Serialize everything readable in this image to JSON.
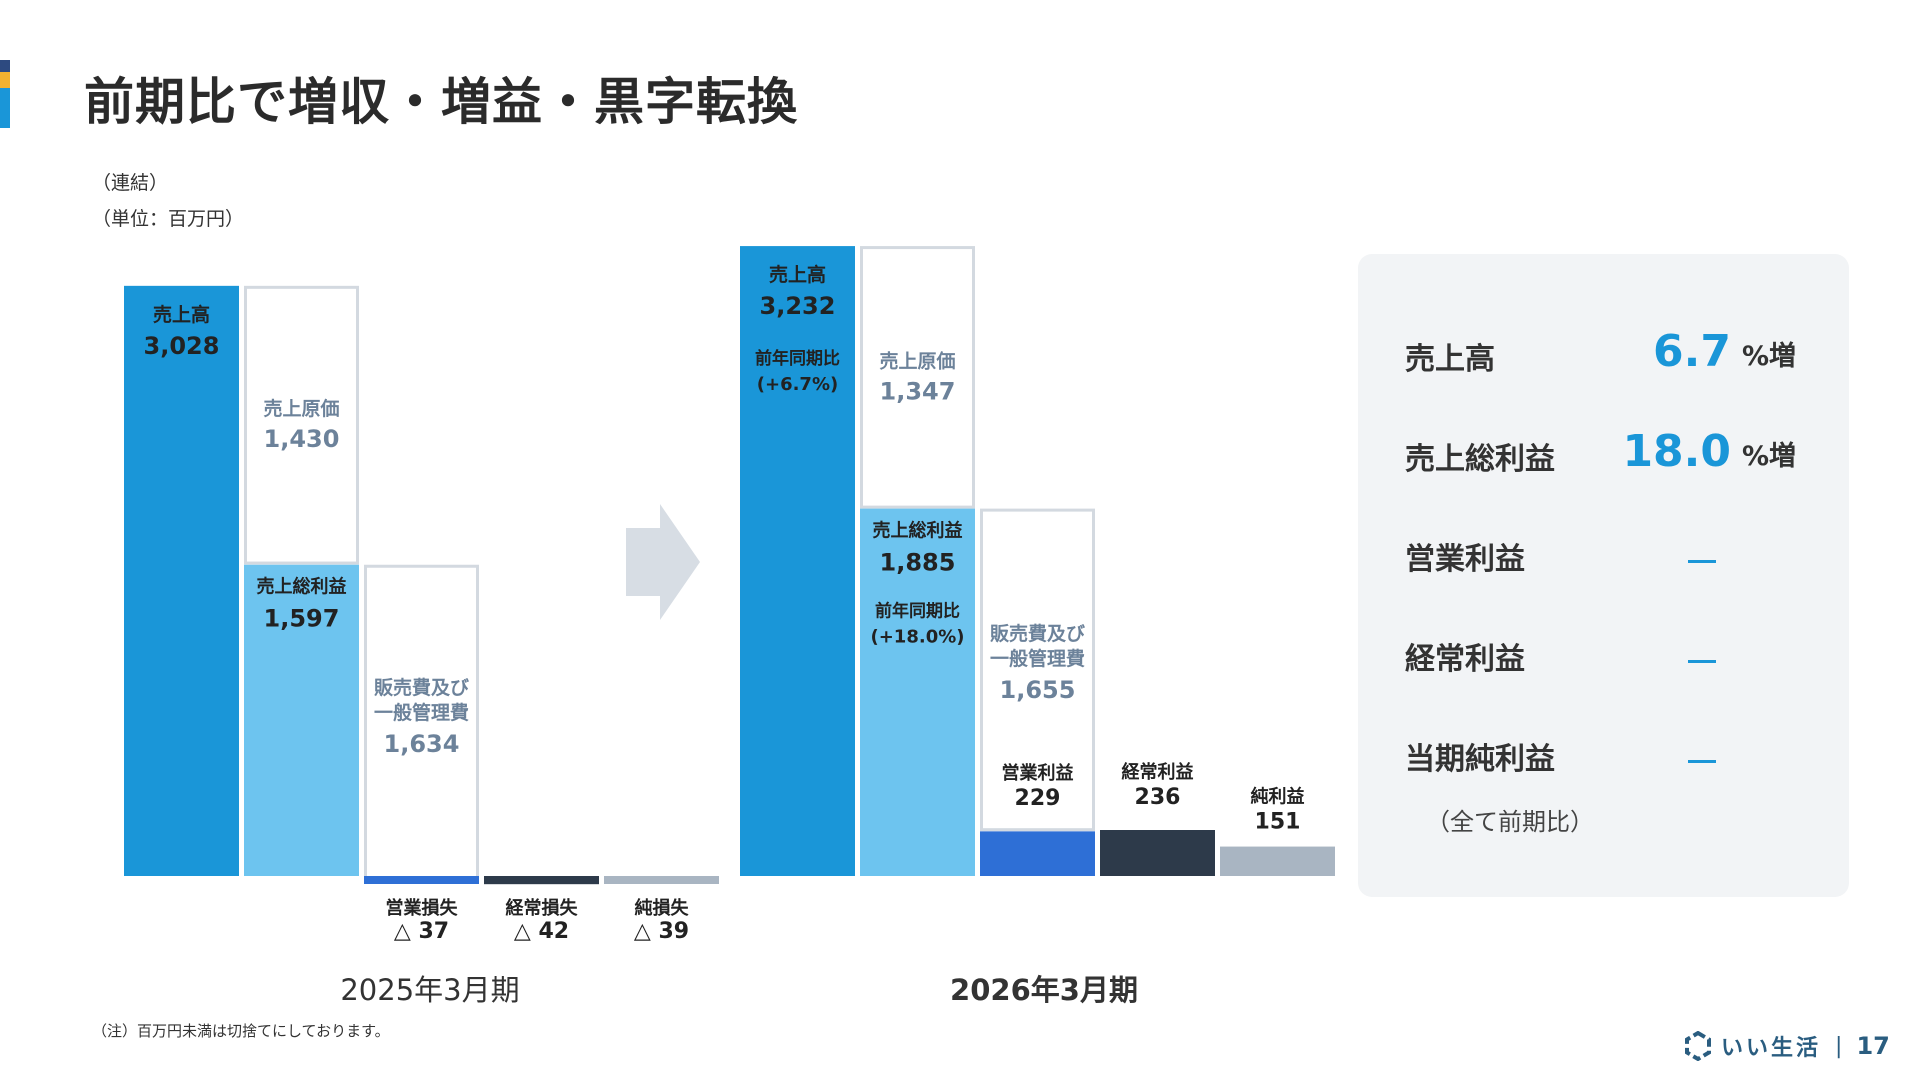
{
  "page": {
    "title": "前期比で増収・増益・黒字転換",
    "scope": "（連結）",
    "unit": "（単位：百万円）",
    "footnote": "（注）百万円未満は切捨てにしております。",
    "brand": "いい生活",
    "page_number": "17",
    "colors": {
      "sales": "#1a96d8",
      "gross_profit": "#6dc4ef",
      "operating": "#2e6fd6",
      "ordinary": "#2d3a4a",
      "net": "#a9b5c2",
      "cost_border": "#d3d9e0",
      "arrow": "#d7dde4"
    }
  },
  "chart_data": [
    {
      "type": "bar",
      "subtype": "waterfall",
      "period": "2025年3月期",
      "items": [
        {
          "name": "売上高",
          "value": 3028,
          "label": "3,028"
        },
        {
          "name": "売上原価",
          "value": 1430,
          "label": "1,430"
        },
        {
          "name": "売上総利益",
          "value": 1597,
          "label": "1,597"
        },
        {
          "name": "販売費及び一般管理費",
          "name_lines": [
            "販売費及び",
            "一般管理費"
          ],
          "value": 1634,
          "label": "1,634"
        },
        {
          "name": "営業損失",
          "value": -37,
          "label": "△ 37"
        },
        {
          "name": "経常損失",
          "value": -42,
          "label": "△ 42"
        },
        {
          "name": "純損失",
          "value": -39,
          "label": "△ 39"
        }
      ]
    },
    {
      "type": "bar",
      "subtype": "waterfall",
      "period": "2026年3月期",
      "items": [
        {
          "name": "売上高",
          "value": 3232,
          "label": "3,232",
          "yoy_label": "前年同期比",
          "yoy": "(+6.7%)"
        },
        {
          "name": "売上原価",
          "value": 1347,
          "label": "1,347"
        },
        {
          "name": "売上総利益",
          "value": 1885,
          "label": "1,885",
          "yoy_label": "前年同期比",
          "yoy": "(+18.0%)"
        },
        {
          "name": "販売費及び一般管理費",
          "name_lines": [
            "販売費及び",
            "一般管理費"
          ],
          "value": 1655,
          "label": "1,655"
        },
        {
          "name": "営業利益",
          "value": 229,
          "label": "229"
        },
        {
          "name": "経常利益",
          "value": 236,
          "label": "236"
        },
        {
          "name": "純利益",
          "value": 151,
          "label": "151"
        }
      ]
    }
  ],
  "summary": {
    "rows": [
      {
        "label": "売上高",
        "value": "6.7",
        "unit": "%増"
      },
      {
        "label": "売上総利益",
        "value": "18.0",
        "unit": "%増"
      },
      {
        "label": "営業利益",
        "value": "",
        "unit": "",
        "dash": true
      },
      {
        "label": "経常利益",
        "value": "",
        "unit": "",
        "dash": true
      },
      {
        "label": "当期純利益",
        "value": "",
        "unit": "",
        "dash": true
      }
    ],
    "note": "（全て前期比）"
  }
}
